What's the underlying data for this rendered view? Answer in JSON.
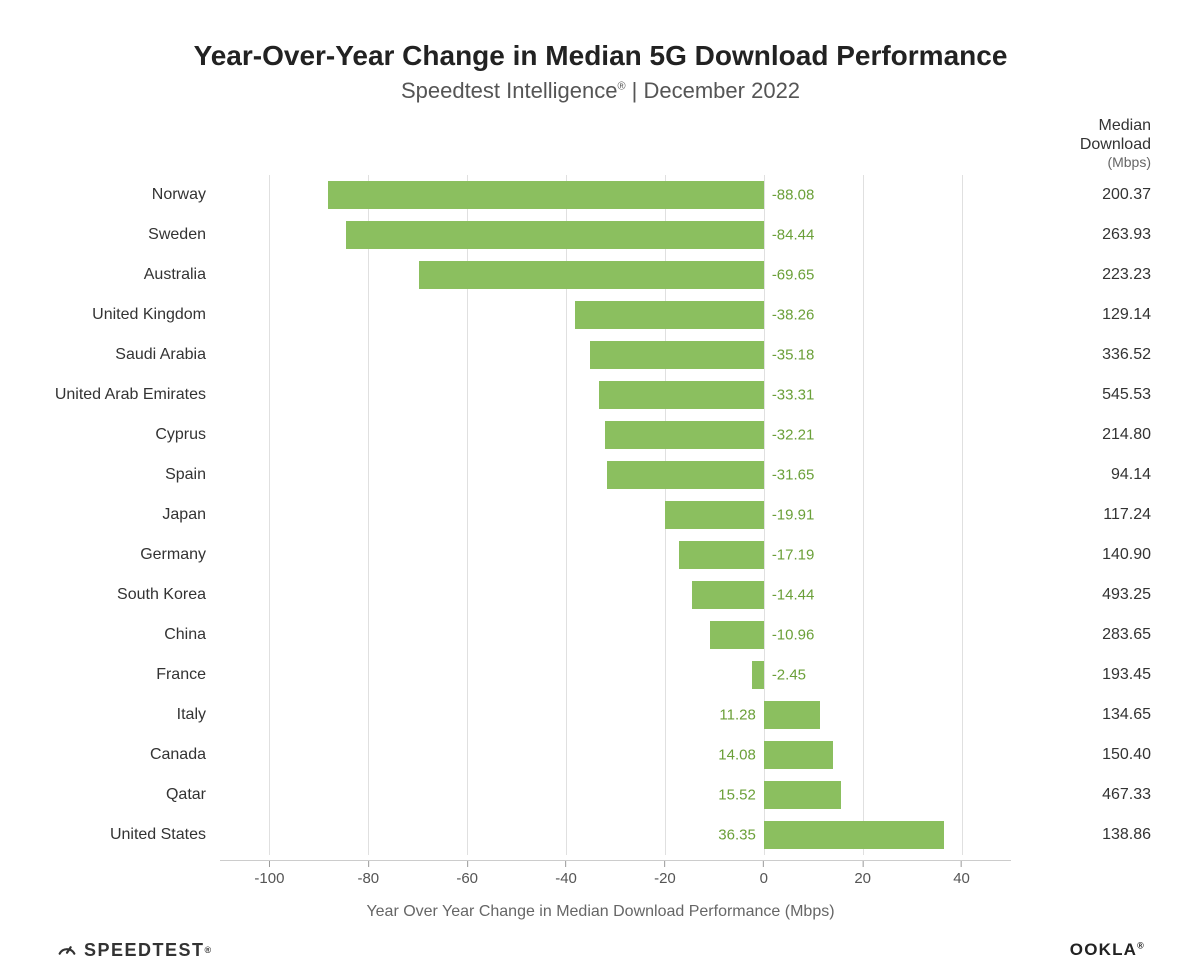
{
  "title": "Year-Over-Year Change in Median 5G Download Performance",
  "subtitle_prefix": "Speedtest Intelligence",
  "subtitle_suffix": " | December 2022",
  "right_col_header_line1": "Median",
  "right_col_header_line2": "Download",
  "right_col_header_unit": "(Mbps)",
  "xlabel": "Year Over Year Change in Median Download Performance (Mbps)",
  "footer_left": "SPEEDTEST",
  "footer_right": "OOKLA",
  "chart": {
    "type": "bar",
    "orientation": "horizontal",
    "bar_color": "#8bbf5f",
    "bar_label_color": "#6ba039",
    "grid_color": "#e0e0e0",
    "background_color": "#ffffff",
    "text_color": "#333333",
    "title_fontsize": 28,
    "subtitle_fontsize": 22,
    "label_fontsize": 16,
    "bar_label_fontsize": 15,
    "tick_fontsize": 15,
    "xlim": [
      -110,
      50
    ],
    "xticks": [
      -100,
      -80,
      -60,
      -40,
      -20,
      0,
      20,
      40
    ],
    "bar_height_ratio": 0.7,
    "rows": [
      {
        "country": "Norway",
        "change": -88.08,
        "median": "200.37"
      },
      {
        "country": "Sweden",
        "change": -84.44,
        "median": "263.93"
      },
      {
        "country": "Australia",
        "change": -69.65,
        "median": "223.23"
      },
      {
        "country": "United Kingdom",
        "change": -38.26,
        "median": "129.14"
      },
      {
        "country": "Saudi Arabia",
        "change": -35.18,
        "median": "336.52"
      },
      {
        "country": "United Arab Emirates",
        "change": -33.31,
        "median": "545.53"
      },
      {
        "country": "Cyprus",
        "change": -32.21,
        "median": "214.80"
      },
      {
        "country": "Spain",
        "change": -31.65,
        "median": "94.14"
      },
      {
        "country": "Japan",
        "change": -19.91,
        "median": "117.24"
      },
      {
        "country": "Germany",
        "change": -17.19,
        "median": "140.90"
      },
      {
        "country": "South Korea",
        "change": -14.44,
        "median": "493.25"
      },
      {
        "country": "China",
        "change": -10.96,
        "median": "283.65"
      },
      {
        "country": "France",
        "change": -2.45,
        "median": "193.45"
      },
      {
        "country": "Italy",
        "change": 11.28,
        "median": "134.65"
      },
      {
        "country": "Canada",
        "change": 14.08,
        "median": "150.40"
      },
      {
        "country": "Qatar",
        "change": 15.52,
        "median": "467.33"
      },
      {
        "country": "United States",
        "change": 36.35,
        "median": "138.86"
      }
    ]
  }
}
